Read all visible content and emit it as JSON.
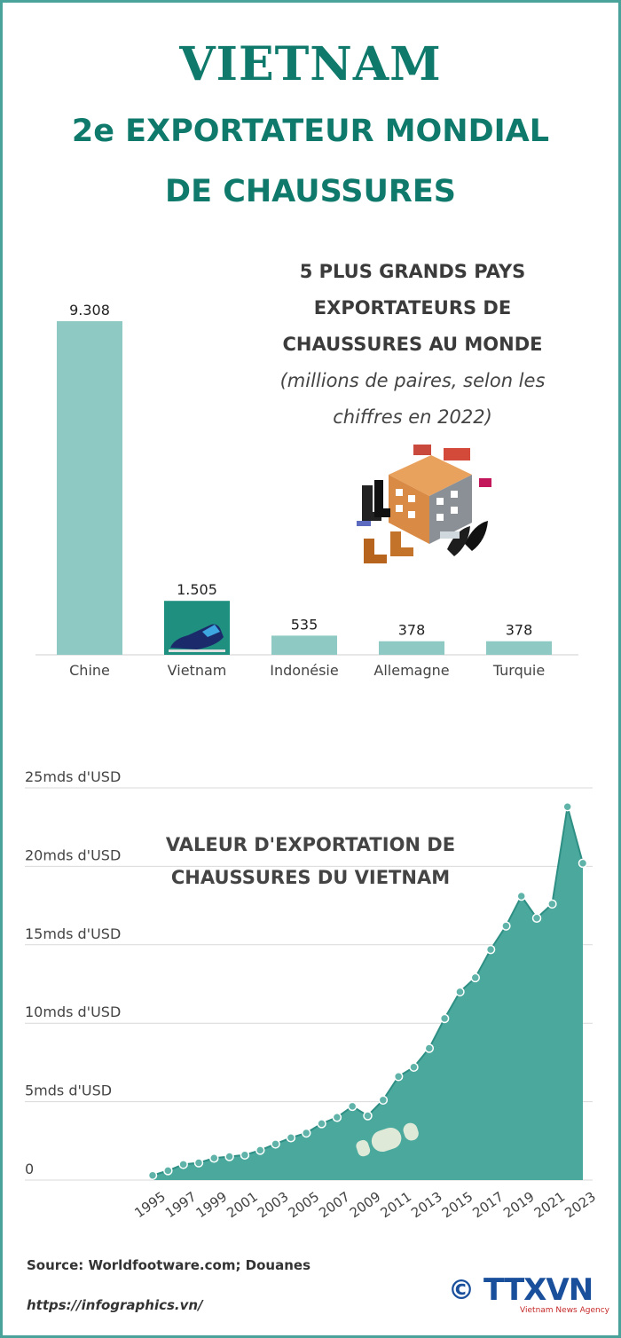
{
  "header": {
    "title": "VIETNAM",
    "subtitle_line1": "2e EXPORTATEUR MONDIAL",
    "subtitle_line2": "DE CHAUSSURES"
  },
  "bar_section": {
    "title_lines": [
      "5 PLUS GRANDS PAYS",
      "EXPORTATEURS DE",
      "CHAUSSURES AU MONDE"
    ],
    "subtitle_lines": [
      "(millions de paires, selon les",
      "chiffres en 2022)"
    ]
  },
  "line_section": {
    "title_lines": [
      "VALEUR D'EXPORTATION DE",
      "CHAUSSURES DU VIETNAM"
    ]
  },
  "footer": {
    "source": "Source: Worldfootware.com; Douanes",
    "url": "https://infographics.vn/",
    "logo_text": "TTXVN",
    "logo_sub": "Vietnam News Agency",
    "copyright_symbol": "©"
  },
  "colors": {
    "title": "#0f7a6c",
    "bar": "#8fc9c3",
    "bar_highlight": "#1f8f80",
    "area": "#4aa89d",
    "logo": "#1a4f9c"
  },
  "chart_data": [
    {
      "type": "bar",
      "categories": [
        "Chine",
        "Vietnam",
        "Indonésie",
        "Allemagne",
        "Turquie"
      ],
      "values": [
        9308,
        1505,
        535,
        378,
        378
      ],
      "value_labels": [
        "9.308",
        "1.505",
        "535",
        "378",
        "378"
      ],
      "highlight": "Vietnam"
    },
    {
      "type": "area",
      "x": [
        1995,
        1996,
        1997,
        1998,
        1999,
        2000,
        2001,
        2002,
        2003,
        2004,
        2005,
        2006,
        2007,
        2008,
        2009,
        2010,
        2011,
        2012,
        2013,
        2014,
        2015,
        2016,
        2017,
        2018,
        2019,
        2020,
        2021,
        2022,
        2023
      ],
      "values": [
        0.3,
        0.6,
        1.0,
        1.1,
        1.4,
        1.5,
        1.6,
        1.9,
        2.3,
        2.7,
        3.0,
        3.6,
        4.0,
        4.7,
        4.1,
        5.1,
        6.6,
        7.2,
        8.4,
        10.3,
        12.0,
        12.9,
        14.7,
        16.2,
        18.1,
        16.7,
        17.6,
        23.8,
        20.2
      ],
      "tick_labels": [
        "1995",
        "1997",
        "1999",
        "2001",
        "2003",
        "2005",
        "2007",
        "2009",
        "2011",
        "2013",
        "2015",
        "2017",
        "2019",
        "2021",
        "2023"
      ],
      "y_ticks": [
        0,
        5,
        10,
        15,
        20,
        25
      ],
      "y_tick_labels": [
        "0",
        "5mds d'USD",
        "10mds d'USD",
        "15mds d'USD",
        "20mds d'USD",
        "25mds d'USD"
      ],
      "ylim": [
        0,
        25
      ],
      "grid": true
    }
  ]
}
